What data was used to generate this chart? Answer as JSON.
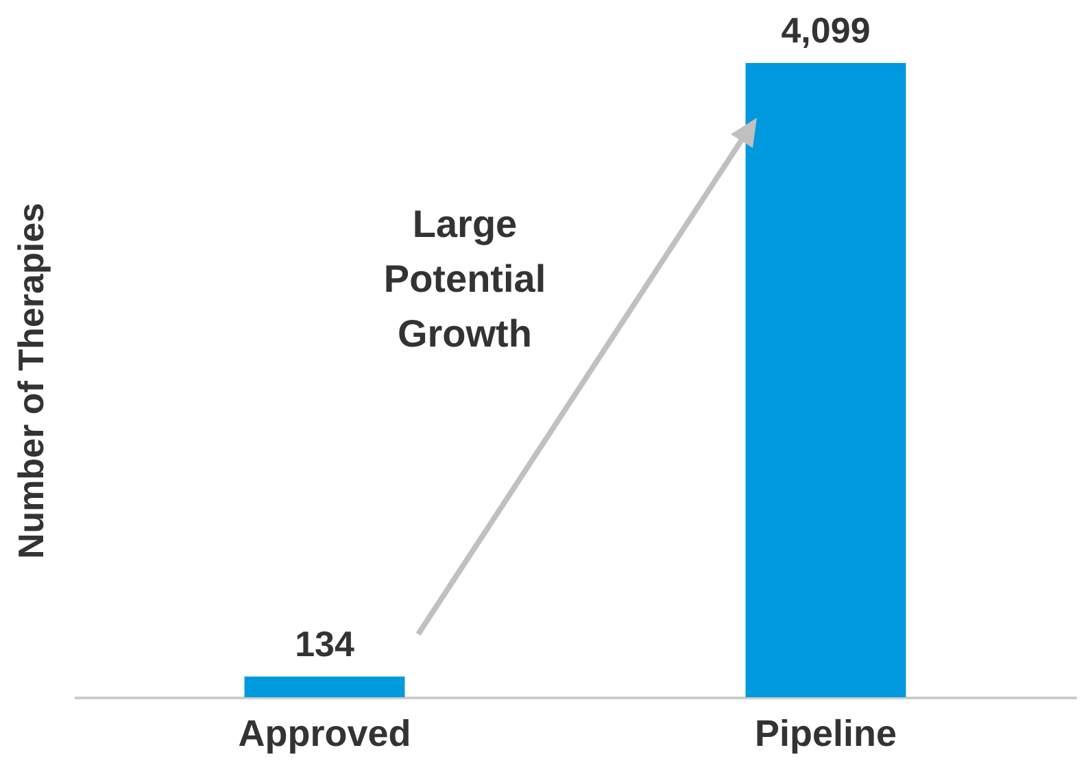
{
  "chart_data": {
    "type": "bar",
    "ylabel": "Number of Therapies",
    "categories": [
      "Approved",
      "Pipeline"
    ],
    "values": [
      134,
      4099
    ],
    "value_labels": [
      "134",
      "4,099"
    ],
    "color": "#0099dd",
    "annotations": [
      "Large Potential Growth"
    ]
  }
}
